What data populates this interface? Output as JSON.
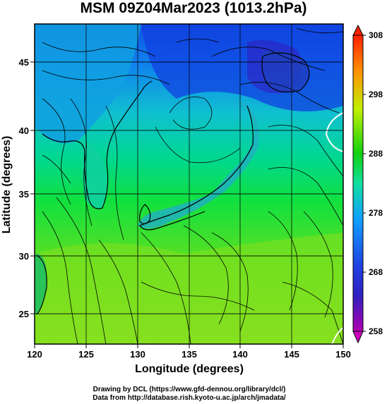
{
  "title": "MSM 09Z04Mar2023 (1013.2hPa)",
  "x_axis": {
    "label": "Longitude (degrees)",
    "ticks": [
      "120",
      "125",
      "130",
      "135",
      "140",
      "145",
      "150"
    ],
    "range": [
      120,
      150
    ]
  },
  "y_axis": {
    "label": "Latitude  (degrees)",
    "ticks": [
      "25",
      "30",
      "35",
      "40",
      "45"
    ],
    "range": [
      22.8,
      48
    ]
  },
  "colorbar": {
    "ticks": [
      "258",
      "268",
      "278",
      "288",
      "298",
      "308"
    ],
    "range": [
      258,
      308
    ],
    "colors": [
      "#b000b0",
      "#2030d0",
      "#10b0ff",
      "#00e060",
      "#20d010",
      "#e8f000",
      "#ff9000",
      "#ff3000"
    ]
  },
  "credits": {
    "line1": "Drawing by DCL (https://www.gfd-dennou.org/library/dcl/)",
    "line2": "Data from http://database.rish.kyoto-u.ac.jp/arch/jmadata/"
  }
}
